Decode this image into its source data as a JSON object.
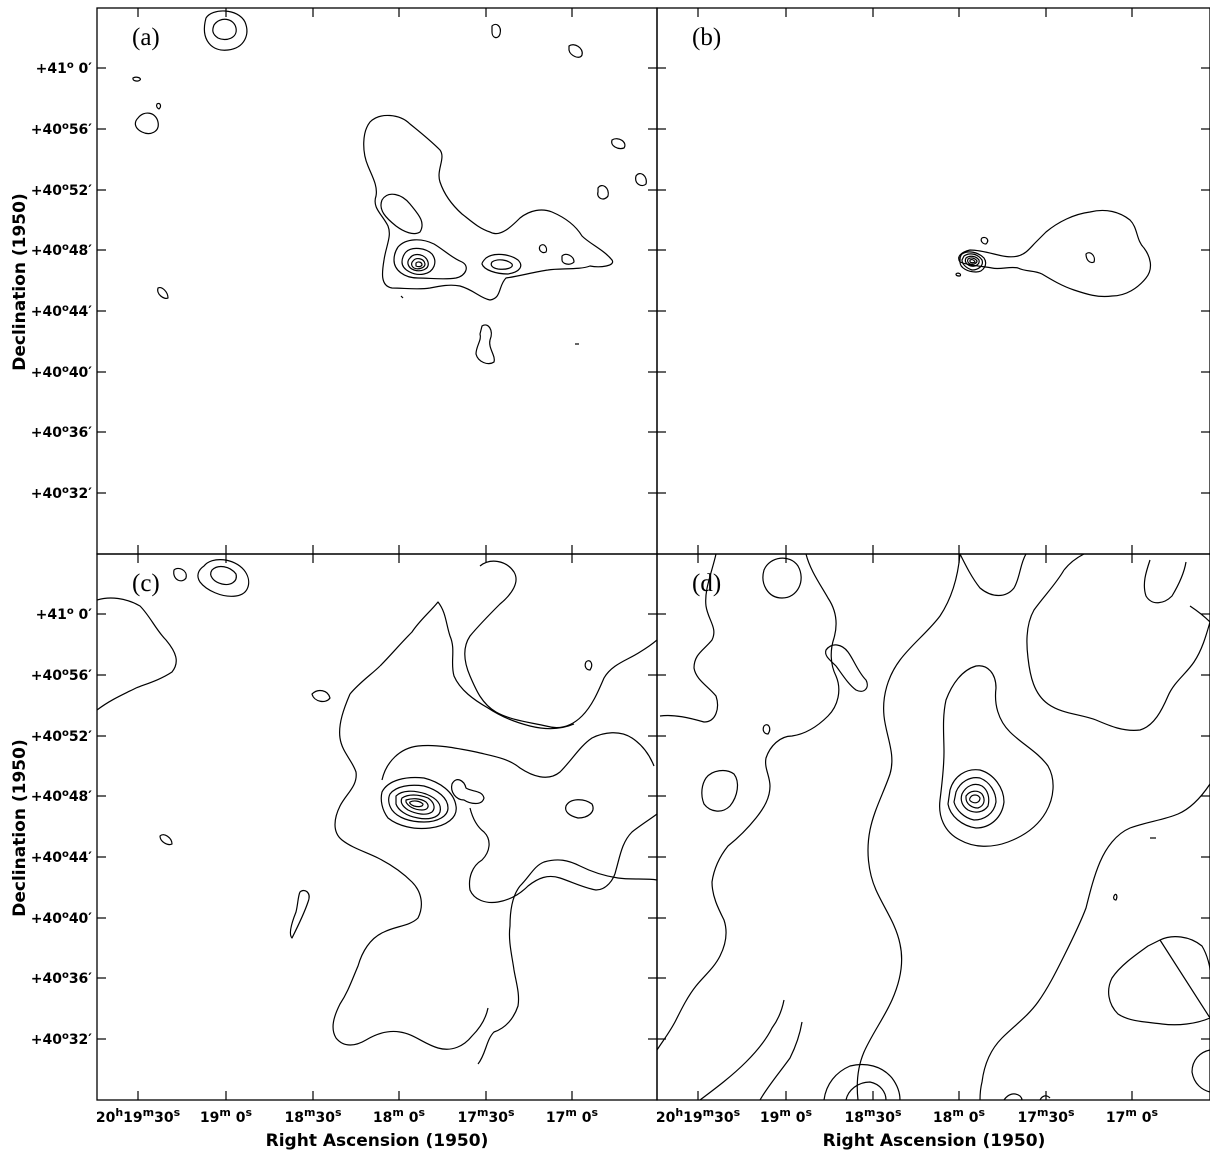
{
  "panels": [
    {
      "id": "a",
      "label": "(a)"
    },
    {
      "id": "b",
      "label": "(b)"
    },
    {
      "id": "c",
      "label": "(c)"
    },
    {
      "id": "d",
      "label": "(d)"
    }
  ],
  "axes": {
    "ylabel": "Declination (1950)",
    "xlabel": "Right Ascension (1950)",
    "dec_ticks": [
      {
        "text": "+41° 0′",
        "deg": "+41",
        "sup": "o",
        "rest": " 0′"
      },
      {
        "text": "+40°56′",
        "deg": "+40",
        "sup": "o",
        "rest": "56′"
      },
      {
        "text": "+40°52′",
        "deg": "+40",
        "sup": "o",
        "rest": "52′"
      },
      {
        "text": "+40°48′",
        "deg": "+40",
        "sup": "o",
        "rest": "48′"
      },
      {
        "text": "+40°44′",
        "deg": "+40",
        "sup": "o",
        "rest": "44′"
      },
      {
        "text": "+40°40′",
        "deg": "+40",
        "sup": "o",
        "rest": "40′"
      },
      {
        "text": "+40°36′",
        "deg": "+40",
        "sup": "o",
        "rest": "36′"
      },
      {
        "text": "+40°32′",
        "deg": "+40",
        "sup": "o",
        "rest": "32′"
      }
    ],
    "ra_ticks": [
      {
        "text": "20h19m30s",
        "parts": [
          [
            "20",
            ""
          ],
          [
            "h",
            "sup"
          ],
          [
            "19",
            ""
          ],
          [
            "m",
            "sup"
          ],
          [
            "30",
            ""
          ],
          [
            "s",
            "sup"
          ]
        ]
      },
      {
        "text": "19m 0s",
        "parts": [
          [
            "19",
            ""
          ],
          [
            "m",
            "sup"
          ],
          [
            " 0",
            ""
          ],
          [
            "s",
            "sup"
          ]
        ]
      },
      {
        "text": "18m30s",
        "parts": [
          [
            "18",
            ""
          ],
          [
            "m",
            "sup"
          ],
          [
            "30",
            ""
          ],
          [
            "s",
            "sup"
          ]
        ]
      },
      {
        "text": "18m 0s",
        "parts": [
          [
            "18",
            ""
          ],
          [
            "m",
            "sup"
          ],
          [
            " 0",
            ""
          ],
          [
            "s",
            "sup"
          ]
        ]
      },
      {
        "text": "17m30s",
        "parts": [
          [
            "17",
            ""
          ],
          [
            "m",
            "sup"
          ],
          [
            "30",
            ""
          ],
          [
            "s",
            "sup"
          ]
        ]
      },
      {
        "text": "17m 0s",
        "parts": [
          [
            "17",
            ""
          ],
          [
            "m",
            "sup"
          ],
          [
            " 0",
            ""
          ],
          [
            "s",
            "sup"
          ]
        ]
      }
    ]
  }
}
